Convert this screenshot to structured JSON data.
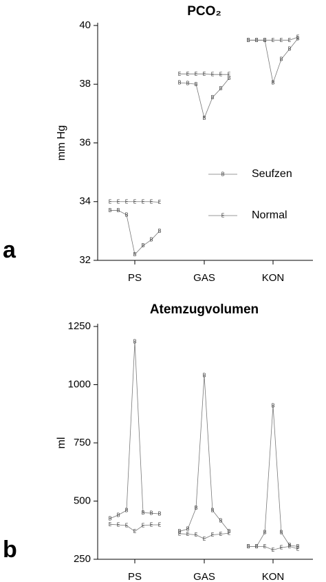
{
  "chart_data": [
    {
      "type": "line",
      "panel_label": "a",
      "title": "PCO₂",
      "y_label": "mm Hg",
      "categories": [
        "PS",
        "GAS",
        "KON"
      ],
      "ylim": [
        32,
        40
      ],
      "yticks": [
        32,
        34,
        36,
        38,
        40
      ],
      "legend": "right",
      "series": [
        {
          "name": "Seufzen",
          "marker": "B",
          "color": "#777777",
          "values": [
            [
              33.7,
              33.7,
              33.55,
              32.2,
              32.5,
              32.7,
              33.0
            ],
            [
              38.05,
              38.03,
              38.0,
              36.85,
              37.55,
              37.85,
              38.2
            ],
            [
              39.5,
              39.5,
              39.5,
              38.05,
              38.85,
              39.2,
              39.55
            ]
          ]
        },
        {
          "name": "Normal",
          "marker": "E",
          "color": "#777777",
          "values": [
            [
              34.0,
              34.0,
              34.0,
              34.0,
              34.0,
              34.0,
              33.98
            ],
            [
              38.35,
              38.35,
              38.35,
              38.35,
              38.33,
              38.33,
              38.33
            ],
            [
              39.5,
              39.5,
              39.5,
              39.5,
              39.5,
              39.5,
              39.6
            ]
          ]
        }
      ]
    },
    {
      "type": "line",
      "panel_label": "b",
      "title": "Atemzugvolumen",
      "y_label": "ml",
      "categories": [
        "PS",
        "GAS",
        "KON"
      ],
      "ylim": [
        250,
        1250
      ],
      "yticks": [
        250,
        500,
        750,
        1000,
        1250
      ],
      "series": [
        {
          "name": "Seufzen",
          "marker": "B",
          "color": "#777777",
          "values": [
            [
              425,
              440,
              460,
              1185,
              450,
              448,
              445
            ],
            [
              370,
              380,
              470,
              1040,
              460,
              415,
              370
            ],
            [
              305,
              305,
              365,
              910,
              365,
              310,
              305
            ]
          ]
        },
        {
          "name": "Normal",
          "marker": "E",
          "color": "#777777",
          "values": [
            [
              400,
              398,
              395,
              370,
              395,
              398,
              398
            ],
            [
              360,
              358,
              355,
              338,
              355,
              358,
              362
            ],
            [
              305,
              305,
              305,
              290,
              300,
              305,
              295
            ]
          ]
        }
      ]
    }
  ]
}
